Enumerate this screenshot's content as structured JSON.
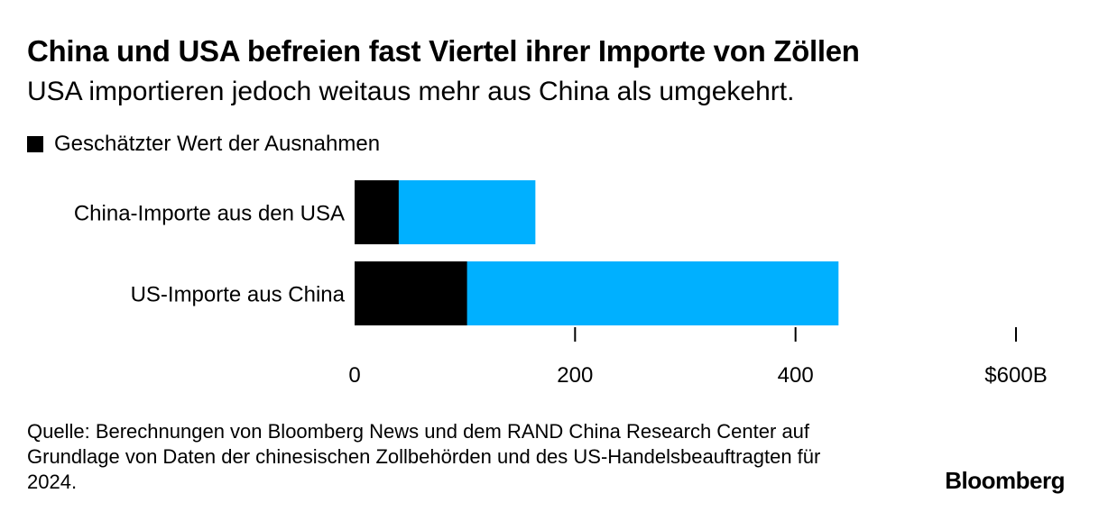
{
  "title": "China und USA befreien fast Viertel ihrer Importe von Zöllen",
  "subtitle": "USA importieren jedoch weitaus mehr aus China als umgekehrt.",
  "legend": {
    "label": "Geschätzter Wert der Ausnahmen",
    "color": "#000000"
  },
  "colors": {
    "exemption": "#000000",
    "total": "#00b0ff",
    "axis": "#000000"
  },
  "chart_data": {
    "type": "bar",
    "orientation": "horizontal",
    "categories": [
      "China-Importe aus den USA",
      "US-Importe aus China"
    ],
    "series": [
      {
        "name": "Geschätzter Wert der Ausnahmen",
        "values": [
          40,
          102
        ]
      },
      {
        "values": [
          164,
          439
        ]
      }
    ],
    "xlim": [
      0,
      600
    ],
    "xticks": [
      0,
      200,
      400,
      600
    ],
    "xtick_labels": [
      "0",
      "200",
      "400",
      "$600B"
    ],
    "grid": false,
    "legend_position": "top-left"
  },
  "source": "Quelle: Berechnungen von Bloomberg News und dem RAND China Research Center auf Grundlage von Daten der chinesischen Zollbehörden und des US-Handelsbeauftragten für 2024.",
  "brand": "Bloomberg"
}
